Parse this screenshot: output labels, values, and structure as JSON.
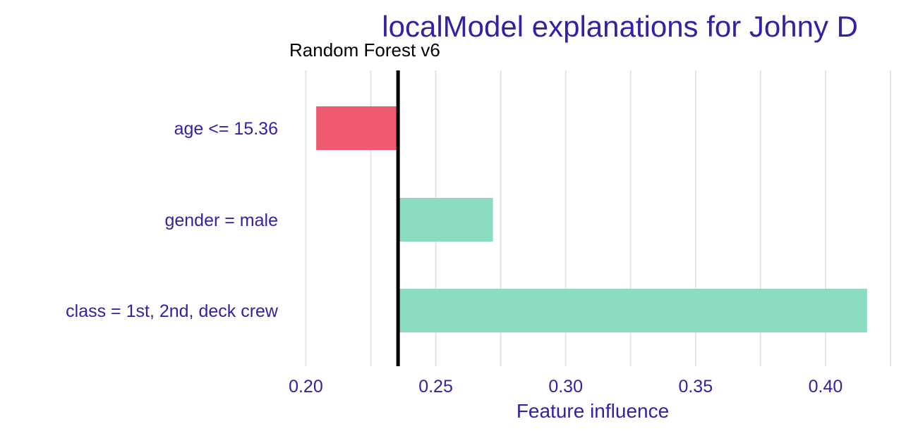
{
  "chart_data": {
    "type": "bar",
    "orientation": "horizontal",
    "title": "localModel explanations for Johny D",
    "subtitle": "Random Forest v6",
    "xlabel": "Feature influence",
    "ylabel": "",
    "baseline": 0.2355,
    "xlim": [
      0.195,
      0.425
    ],
    "xticks": [
      0.2,
      0.25,
      0.3,
      0.35,
      0.4
    ],
    "xtick_labels": [
      "0.20",
      "0.25",
      "0.30",
      "0.35",
      "0.40"
    ],
    "grid": true,
    "legend": "none",
    "categories": [
      "age <= 15.36",
      "gender = male",
      "class = 1st, 2nd, deck crew"
    ],
    "values": [
      0.204,
      0.272,
      0.416
    ],
    "colors": {
      "negative": "#f05a71",
      "positive": "#8bdcbe",
      "text": "#371ea3",
      "baseline": "#000000",
      "grid": "#e4e4e4"
    }
  }
}
